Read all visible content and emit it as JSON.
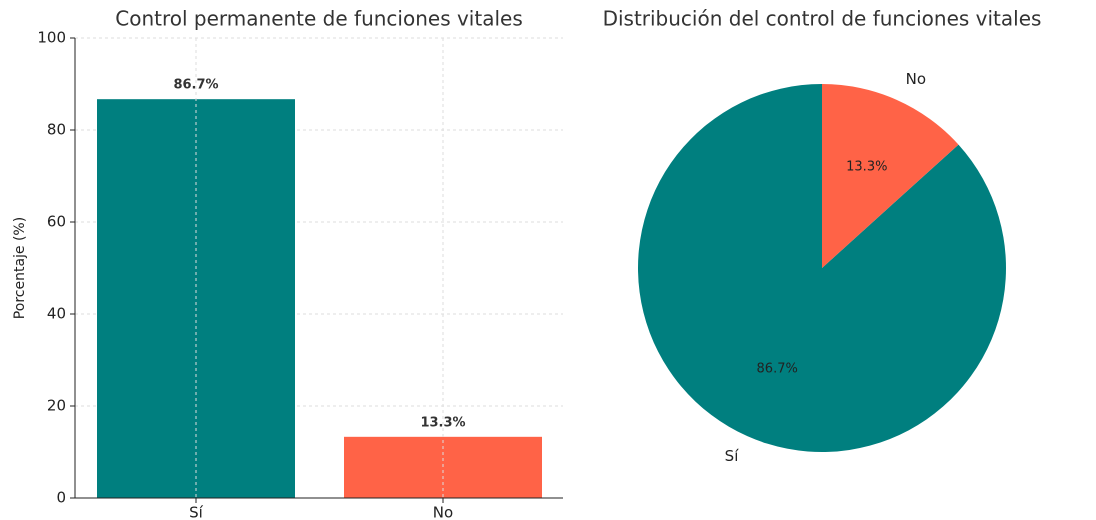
{
  "chart_data": [
    {
      "type": "bar",
      "title": "Control permanente de funciones vitales",
      "ylabel": "Porcentaje (%)",
      "categories": [
        "Sí",
        "No"
      ],
      "values": [
        86.7,
        13.3
      ],
      "value_labels": [
        "86.7%",
        "13.3%"
      ],
      "colors": [
        "#007f7f",
        "#ff6347"
      ],
      "ylim": [
        0,
        100
      ],
      "yticks": [
        0,
        20,
        40,
        60,
        80,
        100
      ],
      "grid": true
    },
    {
      "type": "pie",
      "title": "Distribución del control de funciones vitales",
      "categories": [
        "Sí",
        "No"
      ],
      "values": [
        86.7,
        13.3
      ],
      "value_labels": [
        "86.7%",
        "13.3%"
      ],
      "colors": [
        "#007f7f",
        "#ff6347"
      ]
    }
  ]
}
